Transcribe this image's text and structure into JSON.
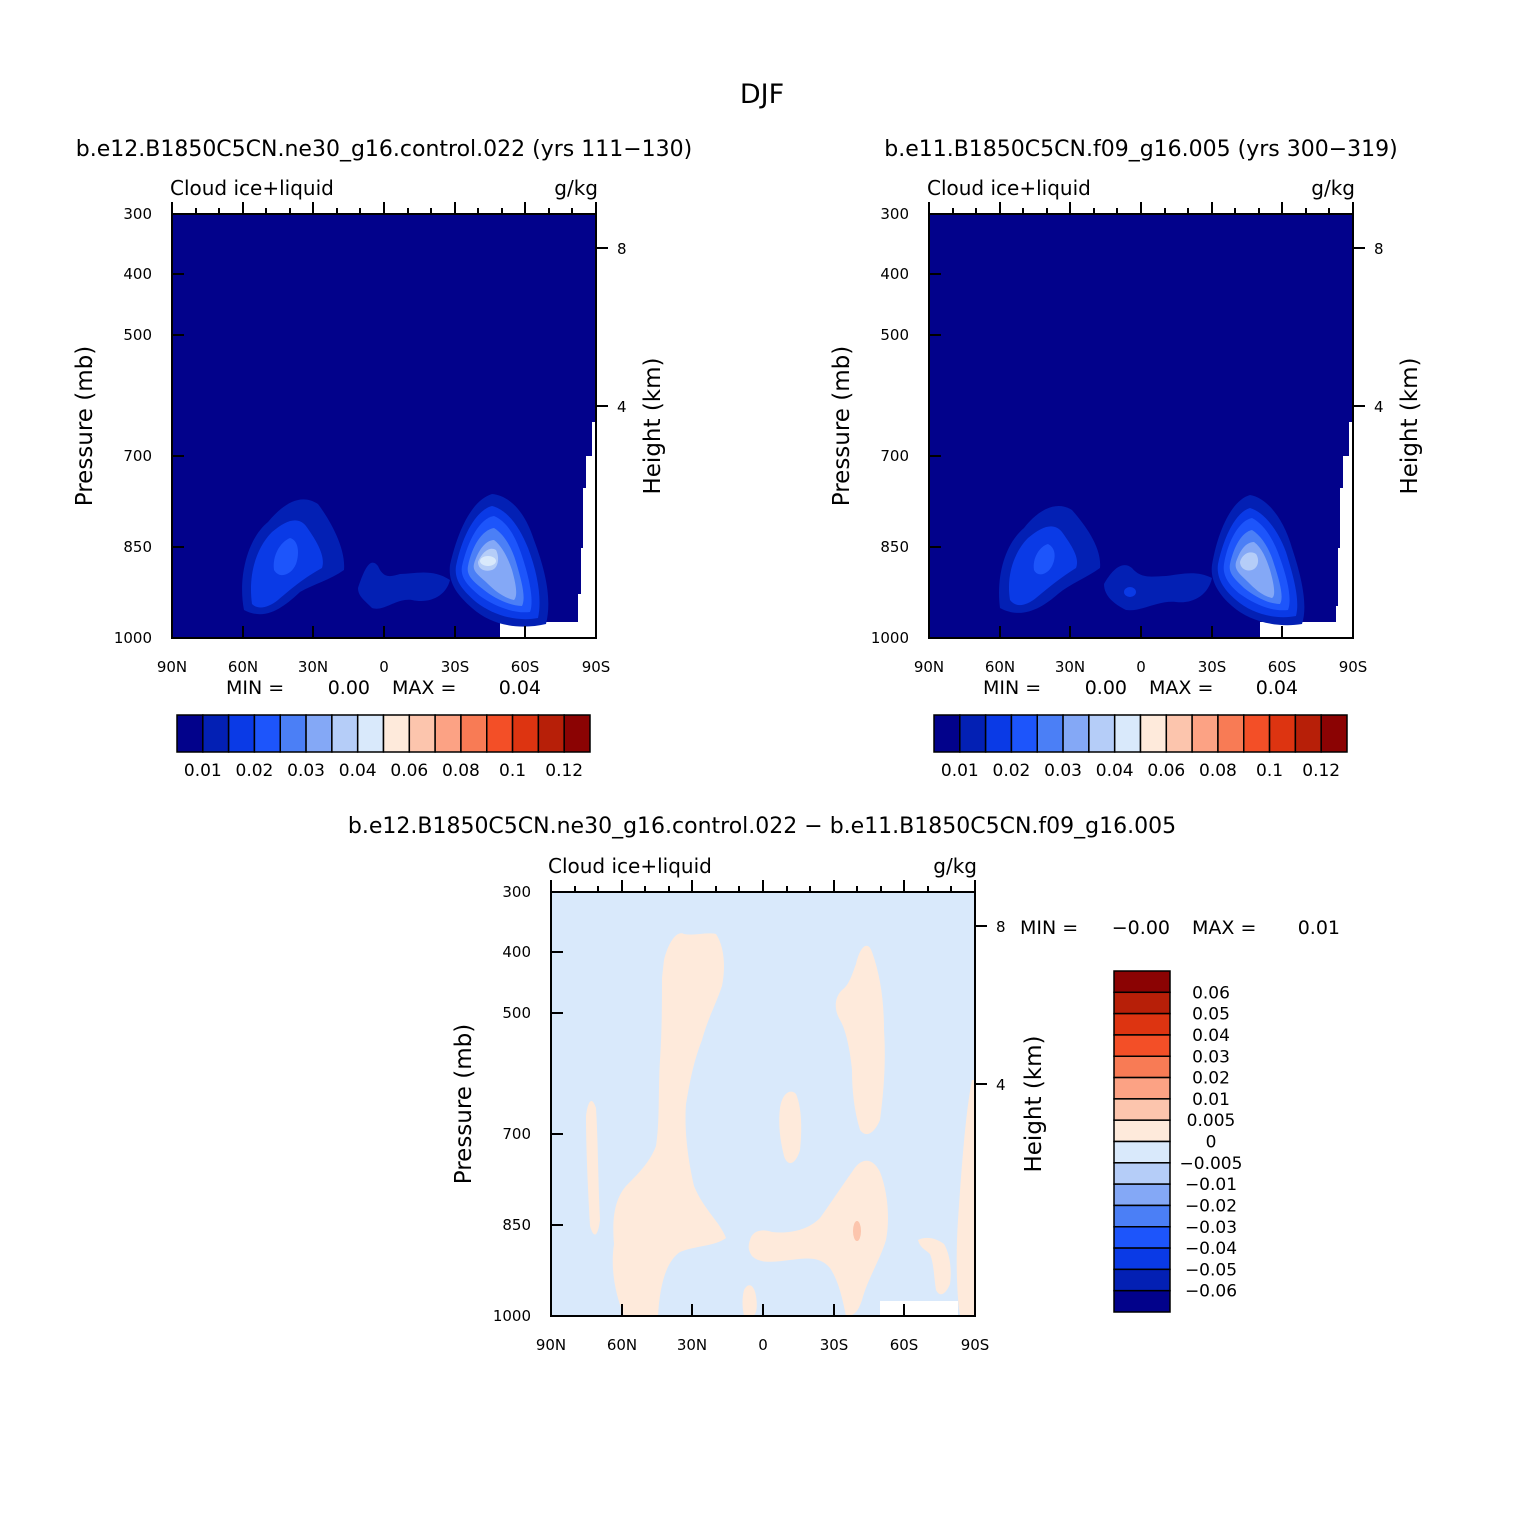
{
  "page_title": "DJF",
  "chart_data": [
    {
      "type": "heatmap",
      "title": "b.e12.B1850C5CN.ne30_g16.control.022 (yrs 111-130)",
      "left_label": "Cloud ice+liquid",
      "right_label": "g/kg",
      "xlabel": "",
      "ylabel": "Pressure (mb)",
      "y2label": "Height (km)",
      "x_ticks": [
        "90N",
        "60N",
        "30N",
        "0",
        "30S",
        "60S",
        "90S"
      ],
      "y_ticks": [
        "300",
        "400",
        "500",
        "700",
        "850",
        "1000"
      ],
      "y2_ticks": [
        "8",
        "4"
      ],
      "ylim": [
        1000,
        300
      ],
      "min_label": "MIN =",
      "min_value": "0.00",
      "max_label": "MAX =",
      "max_value": "0.04",
      "colorbar_orientation": "horizontal",
      "colorbar_labels": [
        "0.01",
        "0.02",
        "0.03",
        "0.04",
        "0.06",
        "0.08",
        "0.1",
        "0.12"
      ],
      "colorbar_colors": [
        "#02028b",
        "#0320b4",
        "#0a3ae6",
        "#1d55fb",
        "#4b7ff6",
        "#84a8f6",
        "#b5cdf8",
        "#d9e9fb",
        "#feeadb",
        "#fcc5ad",
        "#fca284",
        "#f87b55",
        "#f34f27",
        "#dd3411",
        "#b71f08",
        "#8b0303"
      ],
      "features": [
        {
          "name": "northern-maximum",
          "lat": -38,
          "pressure": 860,
          "value": 0.03
        },
        {
          "name": "southern-maximum",
          "lat": 47,
          "pressure": 870,
          "value": 0.04
        }
      ]
    },
    {
      "type": "heatmap",
      "title": "b.e11.B1850C5CN.f09_g16.005 (yrs 300-319)",
      "left_label": "Cloud ice+liquid",
      "right_label": "g/kg",
      "xlabel": "",
      "ylabel": "Pressure (mb)",
      "y2label": "Height (km)",
      "x_ticks": [
        "90N",
        "60N",
        "30N",
        "0",
        "30S",
        "60S",
        "90S"
      ],
      "y_ticks": [
        "300",
        "400",
        "500",
        "700",
        "850",
        "1000"
      ],
      "y2_ticks": [
        "8",
        "4"
      ],
      "ylim": [
        1000,
        300
      ],
      "min_label": "MIN =",
      "min_value": "0.00",
      "max_label": "MAX =",
      "max_value": "0.04",
      "colorbar_orientation": "horizontal",
      "colorbar_labels": [
        "0.01",
        "0.02",
        "0.03",
        "0.04",
        "0.06",
        "0.08",
        "0.1",
        "0.12"
      ],
      "colorbar_colors": [
        "#02028b",
        "#0320b4",
        "#0a3ae6",
        "#1d55fb",
        "#4b7ff6",
        "#84a8f6",
        "#b5cdf8",
        "#d9e9fb",
        "#feeadb",
        "#fcc5ad",
        "#fca284",
        "#f87b55",
        "#f34f27",
        "#dd3411",
        "#b71f08",
        "#8b0303"
      ],
      "features": [
        {
          "name": "northern-maximum",
          "lat": -40,
          "pressure": 870,
          "value": 0.03
        },
        {
          "name": "southern-maximum",
          "lat": 44,
          "pressure": 870,
          "value": 0.04
        }
      ]
    },
    {
      "type": "heatmap",
      "title": "b.e12.B1850C5CN.ne30_g16.control.022 - b.e11.B1850C5CN.f09_g16.005",
      "left_label": "Cloud ice+liquid",
      "right_label": "g/kg",
      "xlabel": "",
      "ylabel": "Pressure (mb)",
      "y2label": "Height (km)",
      "x_ticks": [
        "90N",
        "60N",
        "30N",
        "0",
        "30S",
        "60S",
        "90S"
      ],
      "y_ticks": [
        "300",
        "400",
        "500",
        "700",
        "850",
        "1000"
      ],
      "y2_ticks": [
        "8",
        "4"
      ],
      "ylim": [
        1000,
        300
      ],
      "min_label": "MIN =",
      "min_value": "-0.00",
      "max_label": "MAX =",
      "max_value": "0.01",
      "colorbar_orientation": "vertical",
      "colorbar_labels": [
        "0.06",
        "0.05",
        "0.04",
        "0.03",
        "0.02",
        "0.01",
        "0.005",
        "0",
        "-0.005",
        "-0.01",
        "-0.02",
        "-0.03",
        "-0.04",
        "-0.05",
        "-0.06"
      ],
      "colorbar_colors": [
        "#8b0303",
        "#b71f08",
        "#dd3411",
        "#f34f27",
        "#f87b55",
        "#fca284",
        "#fcc5ad",
        "#feeadb",
        "#d9e9fb",
        "#b5cdf8",
        "#84a8f6",
        "#4b7ff6",
        "#1d55fb",
        "#0a3ae6",
        "#0320b4",
        "#02028b"
      ],
      "background_value": "-0.005 to 0",
      "features": [
        {
          "name": "positive-band-north",
          "lat": -25,
          "pressure": 500,
          "value": 0.004
        },
        {
          "name": "positive-band-south",
          "lat": 50,
          "pressure": 500,
          "value": 0.004
        },
        {
          "name": "positive-band-lower",
          "lat": 15,
          "pressure": 850,
          "value": 0.004
        },
        {
          "name": "local-max-south",
          "lat": 43,
          "pressure": 850,
          "value": 0.01
        }
      ]
    }
  ]
}
